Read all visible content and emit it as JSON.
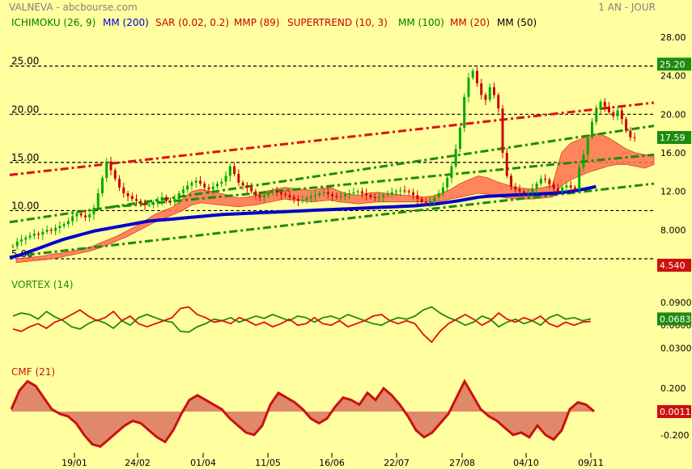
{
  "header": {
    "source": "VALNEVA - abcbourse.com",
    "period": "1 AN - JOUR"
  },
  "colors": {
    "background": "#ffffa0",
    "ichimoku": "#007a00",
    "mm200": "#0000cc",
    "sar": "#cc0000",
    "mmp": "#cc0000",
    "supertrend": "#cc0000",
    "mm100": "#007a00",
    "mm20": "#cc0000",
    "mm50": "#000000",
    "channel_red": "#e01010",
    "channel_green": "#1e8a10",
    "cloud": "#ff7050",
    "candle_up": "#00aa00",
    "candle_down": "#cc0000",
    "vortex_plus": "#1e8a10",
    "vortex_minus": "#e01010",
    "cmf_line": "#cc1010",
    "cmf_fill": "#e0886a"
  },
  "legend": [
    {
      "label": "ICHIMOKU (26, 9)",
      "color": "#007a00"
    },
    {
      "label": "MM (200)",
      "color": "#0000cc"
    },
    {
      "label": "SAR (0.02, 0.2)",
      "color": "#cc0000"
    },
    {
      "label": "MMP (89)",
      "color": "#cc0000"
    },
    {
      "label": "SUPERTREND (10, 3)",
      "color": "#cc0000"
    },
    {
      "label": "MM (100)",
      "color": "#007a00"
    },
    {
      "label": "MM (20)",
      "color": "#cc0000"
    },
    {
      "label": "MM (50)",
      "color": "#000000"
    }
  ],
  "chart_data": [
    {
      "type": "candlestick",
      "title": "VALNEVA - abcbourse.com",
      "ylim": [
        5.0,
        28.0
      ],
      "yticks": [
        "28.00",
        "24.00",
        "20.00",
        "16.00",
        "12.00",
        "8.000"
      ],
      "xticks": [
        "19/01",
        "24/02",
        "01/04",
        "11/05",
        "16/06",
        "22/07",
        "27/08",
        "04/10",
        "09/11"
      ],
      "last_price": "17.59",
      "badges": [
        {
          "label": "25.20",
          "value": 25.2,
          "color": "#1e8a10"
        },
        {
          "label": "17.59",
          "value": 17.59,
          "color": "#1e8a10"
        },
        {
          "label": "4.540",
          "value": 4.54,
          "color": "#cc1010"
        }
      ],
      "horizontal_levels": [
        {
          "label": "25.00",
          "value": 25.0
        },
        {
          "label": "20.00",
          "value": 20.0
        },
        {
          "label": "15.00",
          "value": 15.0
        },
        {
          "label": "10.00",
          "value": 10.0
        },
        {
          "label": "5.00",
          "value": 5.0
        }
      ],
      "close_series": [
        6.3,
        6.8,
        7.0,
        7.2,
        7.4,
        7.6,
        7.5,
        7.8,
        8.0,
        7.9,
        8.2,
        8.4,
        8.6,
        8.9,
        9.4,
        9.7,
        9.5,
        9.3,
        9.6,
        10.3,
        11.8,
        13.4,
        15.1,
        14.2,
        13.3,
        12.4,
        11.8,
        11.5,
        11.2,
        11.0,
        10.8,
        10.6,
        10.6,
        10.8,
        11.1,
        11.4,
        11.0,
        10.9,
        11.2,
        11.8,
        12.2,
        12.6,
        12.9,
        13.1,
        12.8,
        12.4,
        12.2,
        12.5,
        12.8,
        13.0,
        13.6,
        14.6,
        13.8,
        12.9,
        12.6,
        12.4,
        12.0,
        11.6,
        11.4,
        11.6,
        11.9,
        12.0,
        11.9,
        11.7,
        11.6,
        11.4,
        11.2,
        11.0,
        11.1,
        11.3,
        11.5,
        11.6,
        11.8,
        11.9,
        11.7,
        11.5,
        11.4,
        11.5,
        11.7,
        11.8,
        11.9,
        12.0,
        11.8,
        11.6,
        11.4,
        11.3,
        11.4,
        11.6,
        11.7,
        11.9,
        12.0,
        12.1,
        12.0,
        11.9,
        11.6,
        11.2,
        10.9,
        10.8,
        11.0,
        11.4,
        11.8,
        12.4,
        13.4,
        14.6,
        16.4,
        18.6,
        21.8,
        23.8,
        24.5,
        23.2,
        22.0,
        21.5,
        22.8,
        22.0,
        20.6,
        16.0,
        13.6,
        12.5,
        12.2,
        12.0,
        11.8,
        11.9,
        12.3,
        12.8,
        13.3,
        13.2,
        12.7,
        12.3,
        12.0,
        12.4,
        12.6,
        12.4,
        12.2,
        14.5,
        15.8,
        17.6,
        19.2,
        20.5,
        21.3,
        20.8,
        20.2,
        19.8,
        20.4,
        19.5,
        18.3,
        17.6,
        17.59
      ],
      "ichimoku_cloud": {
        "upper": [
          5.0,
          5.1,
          5.2,
          5.3,
          5.5,
          5.6,
          5.8,
          6.0,
          6.2,
          6.6,
          7.0,
          7.4,
          7.9,
          8.4,
          9.0,
          9.6,
          10.0,
          10.4,
          11.2,
          12.0,
          12.2,
          12.0,
          11.8,
          11.6,
          11.3,
          11.4,
          11.6,
          12.0,
          12.2,
          12.4,
          12.3,
          12.2,
          12.1,
          12.3,
          12.4,
          12.0,
          11.7,
          11.6,
          11.8,
          11.9,
          11.8,
          11.7,
          11.6,
          11.5,
          11.4,
          11.5,
          11.8,
          12.2,
          12.8,
          13.2,
          13.6,
          13.4,
          13.0,
          12.7,
          12.4,
          12.3,
          12.2,
          12.4,
          12.6,
          16.0,
          17.0,
          17.4,
          17.8,
          18.0,
          17.6,
          17.0,
          16.4,
          16.0,
          15.8,
          15.8
        ],
        "lower": [
          4.6,
          4.7,
          4.8,
          4.9,
          5.0,
          5.2,
          5.4,
          5.6,
          5.8,
          6.1,
          6.5,
          6.9,
          7.3,
          7.8,
          8.3,
          8.8,
          9.2,
          9.6,
          10.0,
          10.6,
          10.8,
          10.7,
          10.6,
          10.5,
          10.4,
          10.5,
          10.6,
          10.8,
          11.0,
          11.2,
          11.1,
          11.0,
          10.9,
          11.0,
          11.1,
          10.9,
          10.8,
          10.7,
          10.8,
          10.9,
          10.9,
          10.9,
          10.9,
          10.9,
          10.9,
          10.9,
          11.0,
          11.2,
          11.4,
          11.6,
          11.8,
          11.7,
          11.5,
          11.3,
          11.2,
          11.2,
          11.2,
          11.3,
          11.4,
          12.6,
          13.2,
          13.6,
          14.0,
          14.3,
          14.6,
          14.8,
          14.8,
          14.6,
          14.4,
          14.8
        ]
      },
      "mm200": [
        5.1,
        5.4,
        5.8,
        6.2,
        6.6,
        7.0,
        7.3,
        7.6,
        7.9,
        8.1,
        8.3,
        8.5,
        8.7,
        8.9,
        9.0,
        9.1,
        9.2,
        9.3,
        9.4,
        9.5,
        9.6,
        9.65,
        9.7,
        9.75,
        9.8,
        9.85,
        9.9,
        9.95,
        10.0,
        10.05,
        10.1,
        10.15,
        10.2,
        10.25,
        10.3,
        10.35,
        10.4,
        10.45,
        10.5,
        10.6,
        10.7,
        10.85,
        11.0,
        11.2,
        11.4,
        11.5,
        11.55,
        11.6,
        11.65,
        11.7,
        11.75,
        11.8,
        11.9,
        12.05,
        12.25,
        12.5
      ],
      "trend_channel": [
        {
          "color": "#e01010",
          "x0": 0,
          "y0": 13.7,
          "x1": 1,
          "y1": 21.2
        },
        {
          "color": "#1e8a10",
          "x0": 0,
          "y0": 8.8,
          "x1": 1,
          "y1": 18.8
        },
        {
          "color": "#1e8a10",
          "x0": 0.15,
          "y0": 10.3,
          "x1": 1,
          "y1": 15.8
        },
        {
          "color": "#1e8a10",
          "x0": 0,
          "y0": 5.2,
          "x1": 1,
          "y1": 12.8
        }
      ]
    },
    {
      "type": "line",
      "title": "VORTEX (14)",
      "ylim": [
        0.02,
        0.11
      ],
      "yticks": [
        "0.0900",
        "0.0600",
        "0.0300"
      ],
      "last_value": "0.0683",
      "series": [
        {
          "color": "#1e8a10",
          "values": [
            0.072,
            0.076,
            0.074,
            0.068,
            0.078,
            0.071,
            0.066,
            0.058,
            0.055,
            0.062,
            0.067,
            0.063,
            0.056,
            0.066,
            0.06,
            0.07,
            0.074,
            0.07,
            0.066,
            0.064,
            0.052,
            0.051,
            0.058,
            0.062,
            0.068,
            0.066,
            0.07,
            0.064,
            0.068,
            0.072,
            0.069,
            0.074,
            0.07,
            0.066,
            0.072,
            0.07,
            0.064,
            0.07,
            0.072,
            0.068,
            0.074,
            0.07,
            0.066,
            0.062,
            0.06,
            0.066,
            0.07,
            0.068,
            0.072,
            0.08,
            0.084,
            0.076,
            0.07,
            0.066,
            0.06,
            0.064,
            0.072,
            0.068,
            0.058,
            0.064,
            0.068,
            0.062,
            0.066,
            0.06,
            0.07,
            0.074,
            0.068,
            0.07,
            0.066,
            0.0683
          ]
        },
        {
          "color": "#e01010",
          "values": [
            0.055,
            0.052,
            0.058,
            0.062,
            0.056,
            0.064,
            0.068,
            0.074,
            0.08,
            0.072,
            0.066,
            0.07,
            0.078,
            0.066,
            0.072,
            0.062,
            0.058,
            0.062,
            0.066,
            0.07,
            0.082,
            0.084,
            0.074,
            0.07,
            0.064,
            0.066,
            0.062,
            0.07,
            0.066,
            0.06,
            0.064,
            0.058,
            0.062,
            0.068,
            0.06,
            0.062,
            0.07,
            0.062,
            0.06,
            0.066,
            0.058,
            0.062,
            0.066,
            0.072,
            0.074,
            0.066,
            0.062,
            0.066,
            0.062,
            0.048,
            0.038,
            0.052,
            0.062,
            0.068,
            0.074,
            0.068,
            0.06,
            0.066,
            0.076,
            0.068,
            0.064,
            0.07,
            0.066,
            0.072,
            0.062,
            0.058,
            0.064,
            0.06,
            0.064,
            0.065
          ]
        }
      ]
    },
    {
      "type": "area",
      "title": "CMF (21)",
      "ylim": [
        -0.34,
        0.34
      ],
      "yticks": [
        "0.200",
        "-0.200"
      ],
      "last_value": "0.0011",
      "values": [
        0.02,
        0.18,
        0.26,
        0.22,
        0.12,
        0.02,
        -0.02,
        -0.04,
        -0.1,
        -0.2,
        -0.28,
        -0.3,
        -0.24,
        -0.18,
        -0.12,
        -0.08,
        -0.1,
        -0.16,
        -0.22,
        -0.26,
        -0.16,
        -0.02,
        0.1,
        0.14,
        0.1,
        0.06,
        0.02,
        -0.06,
        -0.12,
        -0.18,
        -0.2,
        -0.12,
        0.06,
        0.16,
        0.12,
        0.08,
        0.02,
        -0.06,
        -0.1,
        -0.06,
        0.04,
        0.12,
        0.1,
        0.06,
        0.16,
        0.1,
        0.2,
        0.14,
        0.06,
        -0.04,
        -0.16,
        -0.22,
        -0.18,
        -0.1,
        -0.02,
        0.12,
        0.26,
        0.14,
        0.02,
        -0.04,
        -0.08,
        -0.14,
        -0.2,
        -0.18,
        -0.22,
        -0.12,
        -0.2,
        -0.24,
        -0.16,
        0.02,
        0.08,
        0.06,
        0.0011
      ]
    }
  ]
}
